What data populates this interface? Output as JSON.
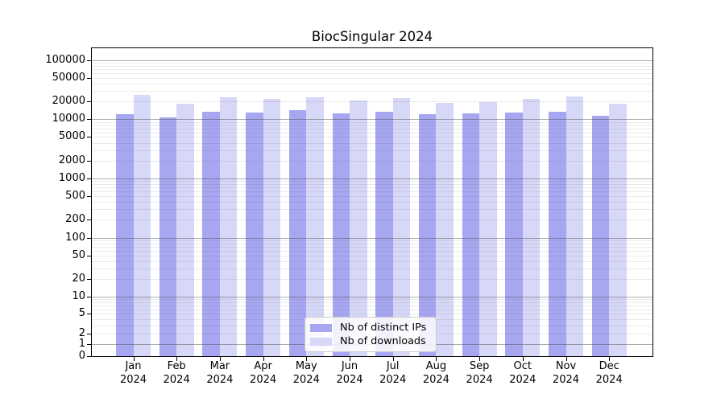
{
  "figure": {
    "title": "BiocSingular 2024"
  },
  "chart_data": {
    "type": "bar",
    "title": "BiocSingular 2024",
    "subtitle": "",
    "xlabel": "",
    "ylabel": "",
    "categories": [
      "Jan",
      "Feb",
      "Mar",
      "Apr",
      "May",
      "Jun",
      "Jul",
      "Aug",
      "Sep",
      "Oct",
      "Nov",
      "Dec"
    ],
    "x_tick_second_line": "2024",
    "series": [
      {
        "name": "Nb of distinct IPs",
        "color": "#a6a6f1",
        "values": [
          12000,
          10600,
          13500,
          13000,
          14400,
          12700,
          13500,
          12000,
          12400,
          13000,
          13500,
          11400
        ]
      },
      {
        "name": "Nb of downloads",
        "color": "#d7d7f8",
        "values": [
          25700,
          18300,
          23200,
          21800,
          23700,
          20500,
          22500,
          18800,
          19400,
          22200,
          24400,
          18400
        ]
      }
    ],
    "y_axis": {
      "scale": "asinh (log-like, linear near zero)",
      "tick_values": [
        100000,
        50000,
        20000,
        10000,
        5000,
        2000,
        1000,
        500,
        200,
        100,
        50,
        20,
        10,
        5,
        2,
        1,
        0
      ],
      "tick_labels": [
        "100000",
        "50000",
        "20000",
        "10000",
        "5000",
        "2000",
        "1000",
        "500",
        "200",
        "100",
        "50",
        "20",
        "10",
        "5",
        "2",
        "1",
        "0"
      ],
      "ylim": [
        0,
        300000
      ]
    },
    "grid": "on",
    "grid_major_color": "rgba(70,70,70,0.45)",
    "grid_minor_color": "rgba(90,90,90,0.12)",
    "legend_position": "lower center, inside axes"
  }
}
